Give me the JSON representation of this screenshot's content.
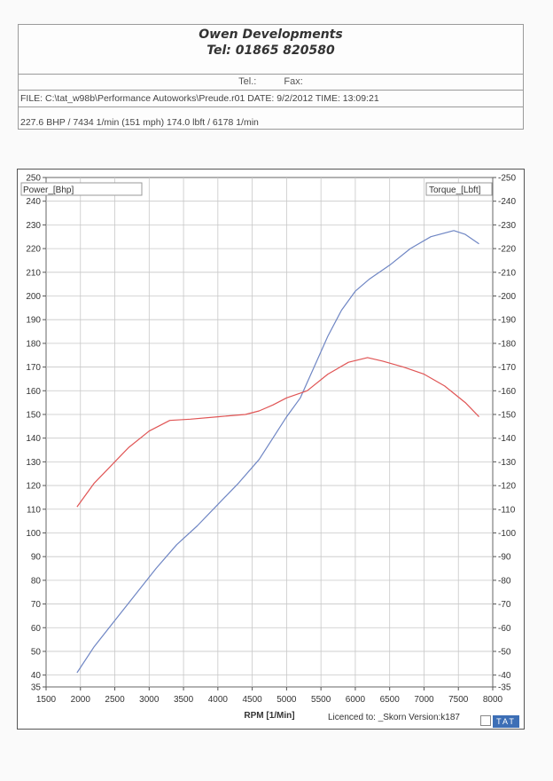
{
  "header": {
    "company": "Owen Developments",
    "phone": "Tel: 01865 820580",
    "tel_label": "Tel.:",
    "fax_label": "Fax:",
    "file_line": "FILE: C:\\tat_w98b\\Performance  Autoworks\\Preude.r01  DATE: 9/2/2012  TIME: 13:09:21",
    "summary": "227.6 BHP / 7434 1/min (151 mph)    174.0 lbft / 6178 1/min"
  },
  "chart_data": {
    "type": "line",
    "xlabel": "RPM  [1/Min]",
    "xlim": [
      1500,
      8000
    ],
    "x_ticks": [
      1500,
      2000,
      2500,
      3000,
      3500,
      4000,
      4500,
      5000,
      5500,
      6000,
      6500,
      7000,
      7500,
      8000
    ],
    "ylim": [
      35,
      250
    ],
    "y_ticks": [
      35,
      40,
      50,
      60,
      70,
      80,
      90,
      100,
      110,
      120,
      130,
      140,
      150,
      160,
      170,
      180,
      190,
      200,
      210,
      220,
      230,
      240,
      250
    ],
    "left_axis_label": "Power_[Bhp]",
    "right_axis_label": "Torque_[Lbft]",
    "grid": true,
    "series": [
      {
        "name": "Power_[Bhp]",
        "color": "#6f86c4",
        "points": [
          [
            1950,
            41
          ],
          [
            2200,
            52
          ],
          [
            2500,
            63
          ],
          [
            2800,
            74
          ],
          [
            3100,
            85
          ],
          [
            3400,
            95
          ],
          [
            3700,
            103
          ],
          [
            4000,
            112
          ],
          [
            4300,
            121
          ],
          [
            4600,
            131
          ],
          [
            4800,
            140
          ],
          [
            5000,
            149
          ],
          [
            5200,
            157
          ],
          [
            5400,
            170
          ],
          [
            5600,
            183
          ],
          [
            5800,
            194
          ],
          [
            6000,
            202
          ],
          [
            6200,
            207
          ],
          [
            6500,
            213
          ],
          [
            6800,
            220
          ],
          [
            7100,
            225
          ],
          [
            7434,
            227.6
          ],
          [
            7600,
            226
          ],
          [
            7800,
            222
          ]
        ]
      },
      {
        "name": "Torque_[Lbft]",
        "color": "#e05555",
        "points": [
          [
            1950,
            111
          ],
          [
            2200,
            121
          ],
          [
            2500,
            130
          ],
          [
            2700,
            136
          ],
          [
            3000,
            143
          ],
          [
            3300,
            147.5
          ],
          [
            3600,
            148
          ],
          [
            4000,
            149
          ],
          [
            4400,
            150
          ],
          [
            4600,
            151.5
          ],
          [
            4800,
            154
          ],
          [
            5000,
            157
          ],
          [
            5300,
            160
          ],
          [
            5600,
            167
          ],
          [
            5900,
            172
          ],
          [
            6178,
            174
          ],
          [
            6400,
            172.5
          ],
          [
            6700,
            170
          ],
          [
            7000,
            167
          ],
          [
            7300,
            162
          ],
          [
            7600,
            155
          ],
          [
            7800,
            149
          ]
        ]
      }
    ]
  },
  "footer": {
    "license": "Licenced to: _Skorn   Version:k187",
    "badge": "TAT"
  }
}
